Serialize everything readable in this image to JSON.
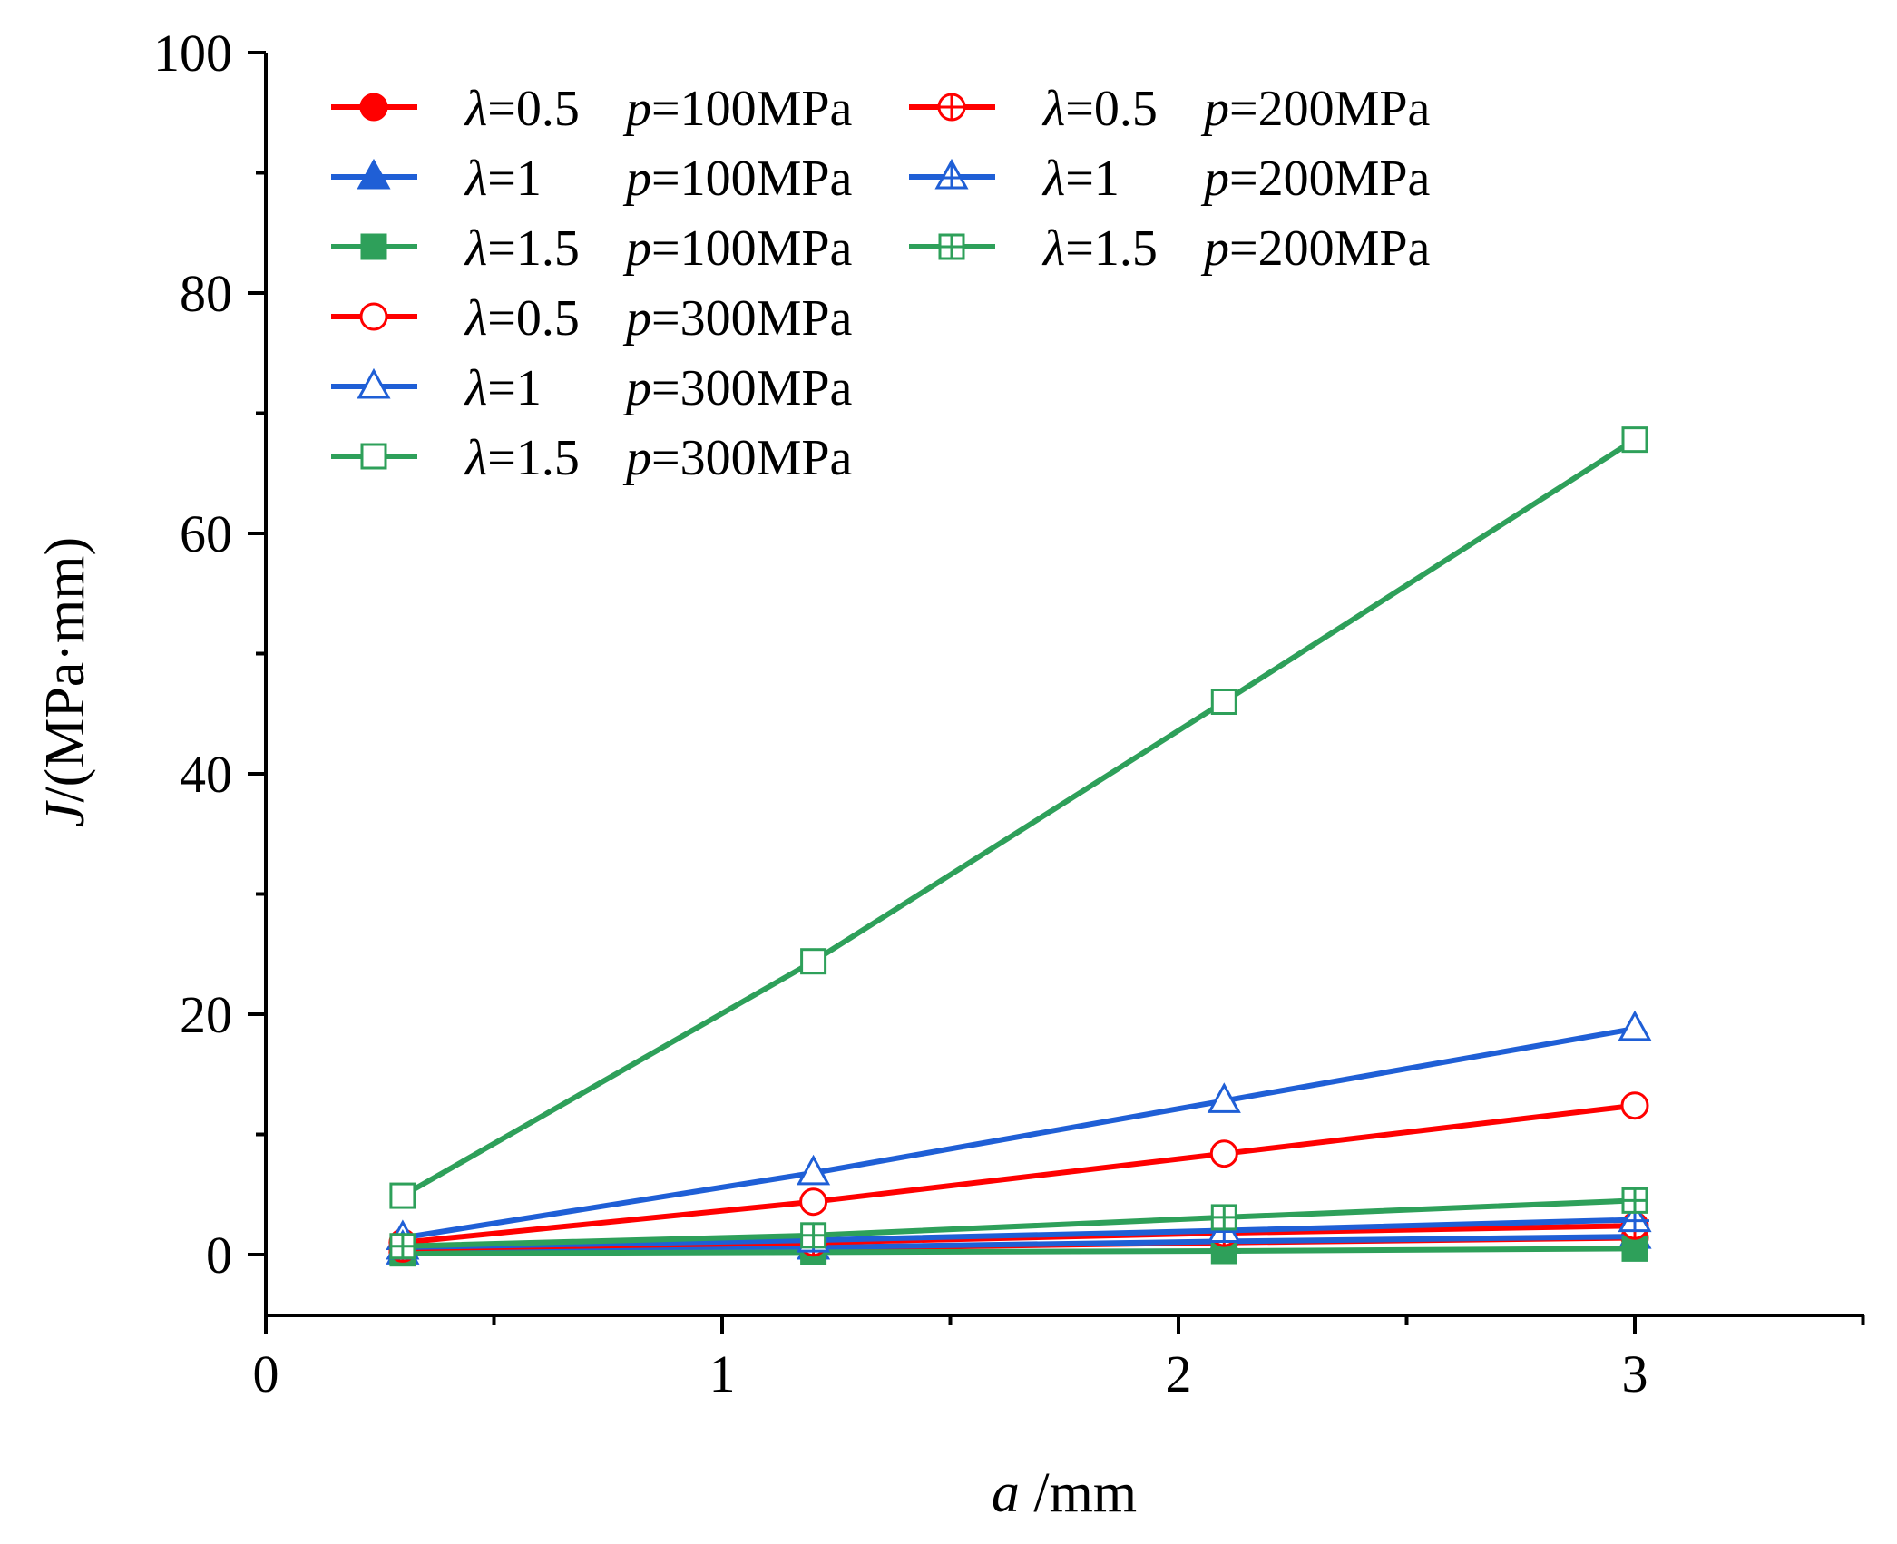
{
  "chart_data": {
    "type": "line",
    "title": "",
    "xlabel_var": "a",
    "xlabel_unit": " /mm",
    "ylabel_var": "J",
    "ylabel_unit": "/(MPa·mm)",
    "xlim": [
      0,
      3.5
    ],
    "ylim": [
      -5,
      100
    ],
    "x_ticks": [
      0,
      1,
      2,
      3
    ],
    "x_minor_ticks": [
      0.5,
      1.5,
      2.5,
      3.5
    ],
    "y_ticks": [
      0,
      20,
      40,
      60,
      80,
      100
    ],
    "y_minor_ticks": [
      10,
      30,
      50,
      70,
      90
    ],
    "x": [
      0.3,
      1.2,
      2.1,
      3.0
    ],
    "legend_position": "top-left",
    "series": [
      {
        "id": "s1",
        "lambda_sym": "λ",
        "lambda": "=0.5",
        "p_sym": "p",
        "p": "=100MPa",
        "color": "#ff0000",
        "marker": "circle-filled",
        "values": [
          0.2,
          0.5,
          1.0,
          1.4
        ]
      },
      {
        "id": "s2",
        "lambda_sym": "λ",
        "lambda": "=1",
        "p_sym": "p",
        "p": "=100MPa",
        "color": "#1f5fd6",
        "marker": "triangle-filled",
        "values": [
          0.2,
          0.6,
          1.1,
          1.5
        ]
      },
      {
        "id": "s3",
        "lambda_sym": "λ",
        "lambda": "=1.5",
        "p_sym": "p",
        "p": "=100MPa",
        "color": "#2ea05a",
        "marker": "square-filled",
        "values": [
          0.1,
          0.2,
          0.3,
          0.5
        ]
      },
      {
        "id": "s4",
        "lambda_sym": "λ",
        "lambda": "=0.5",
        "p_sym": "p",
        "p": "=300MPa",
        "color": "#ff0000",
        "marker": "circle-open",
        "values": [
          1.0,
          4.4,
          8.4,
          12.4
        ]
      },
      {
        "id": "s5",
        "lambda_sym": "λ",
        "lambda": "=1",
        "p_sym": "p",
        "p": "=300MPa",
        "color": "#1f5fd6",
        "marker": "triangle-open",
        "values": [
          1.4,
          6.8,
          12.8,
          18.8
        ]
      },
      {
        "id": "s6",
        "lambda_sym": "λ",
        "lambda": "=1.5",
        "p_sym": "p",
        "p": "=300MPa",
        "color": "#2ea05a",
        "marker": "square-open",
        "values": [
          4.9,
          24.4,
          46.0,
          67.8
        ]
      },
      {
        "id": "s7",
        "lambda_sym": "λ",
        "lambda": "=0.5",
        "p_sym": "p",
        "p": "=200MPa",
        "color": "#ff0000",
        "marker": "circle-plus",
        "values": [
          0.5,
          1.0,
          1.8,
          2.4
        ]
      },
      {
        "id": "s8",
        "lambda_sym": "λ",
        "lambda": "=1",
        "p_sym": "p",
        "p": "=200MPa",
        "color": "#1f5fd6",
        "marker": "triangle-plus",
        "values": [
          0.6,
          1.2,
          2.0,
          2.9
        ]
      },
      {
        "id": "s9",
        "lambda_sym": "λ",
        "lambda": "=1.5",
        "p_sym": "p",
        "p": "=200MPa",
        "color": "#2ea05a",
        "marker": "square-plus",
        "values": [
          0.7,
          1.6,
          3.1,
          4.5
        ]
      }
    ]
  }
}
